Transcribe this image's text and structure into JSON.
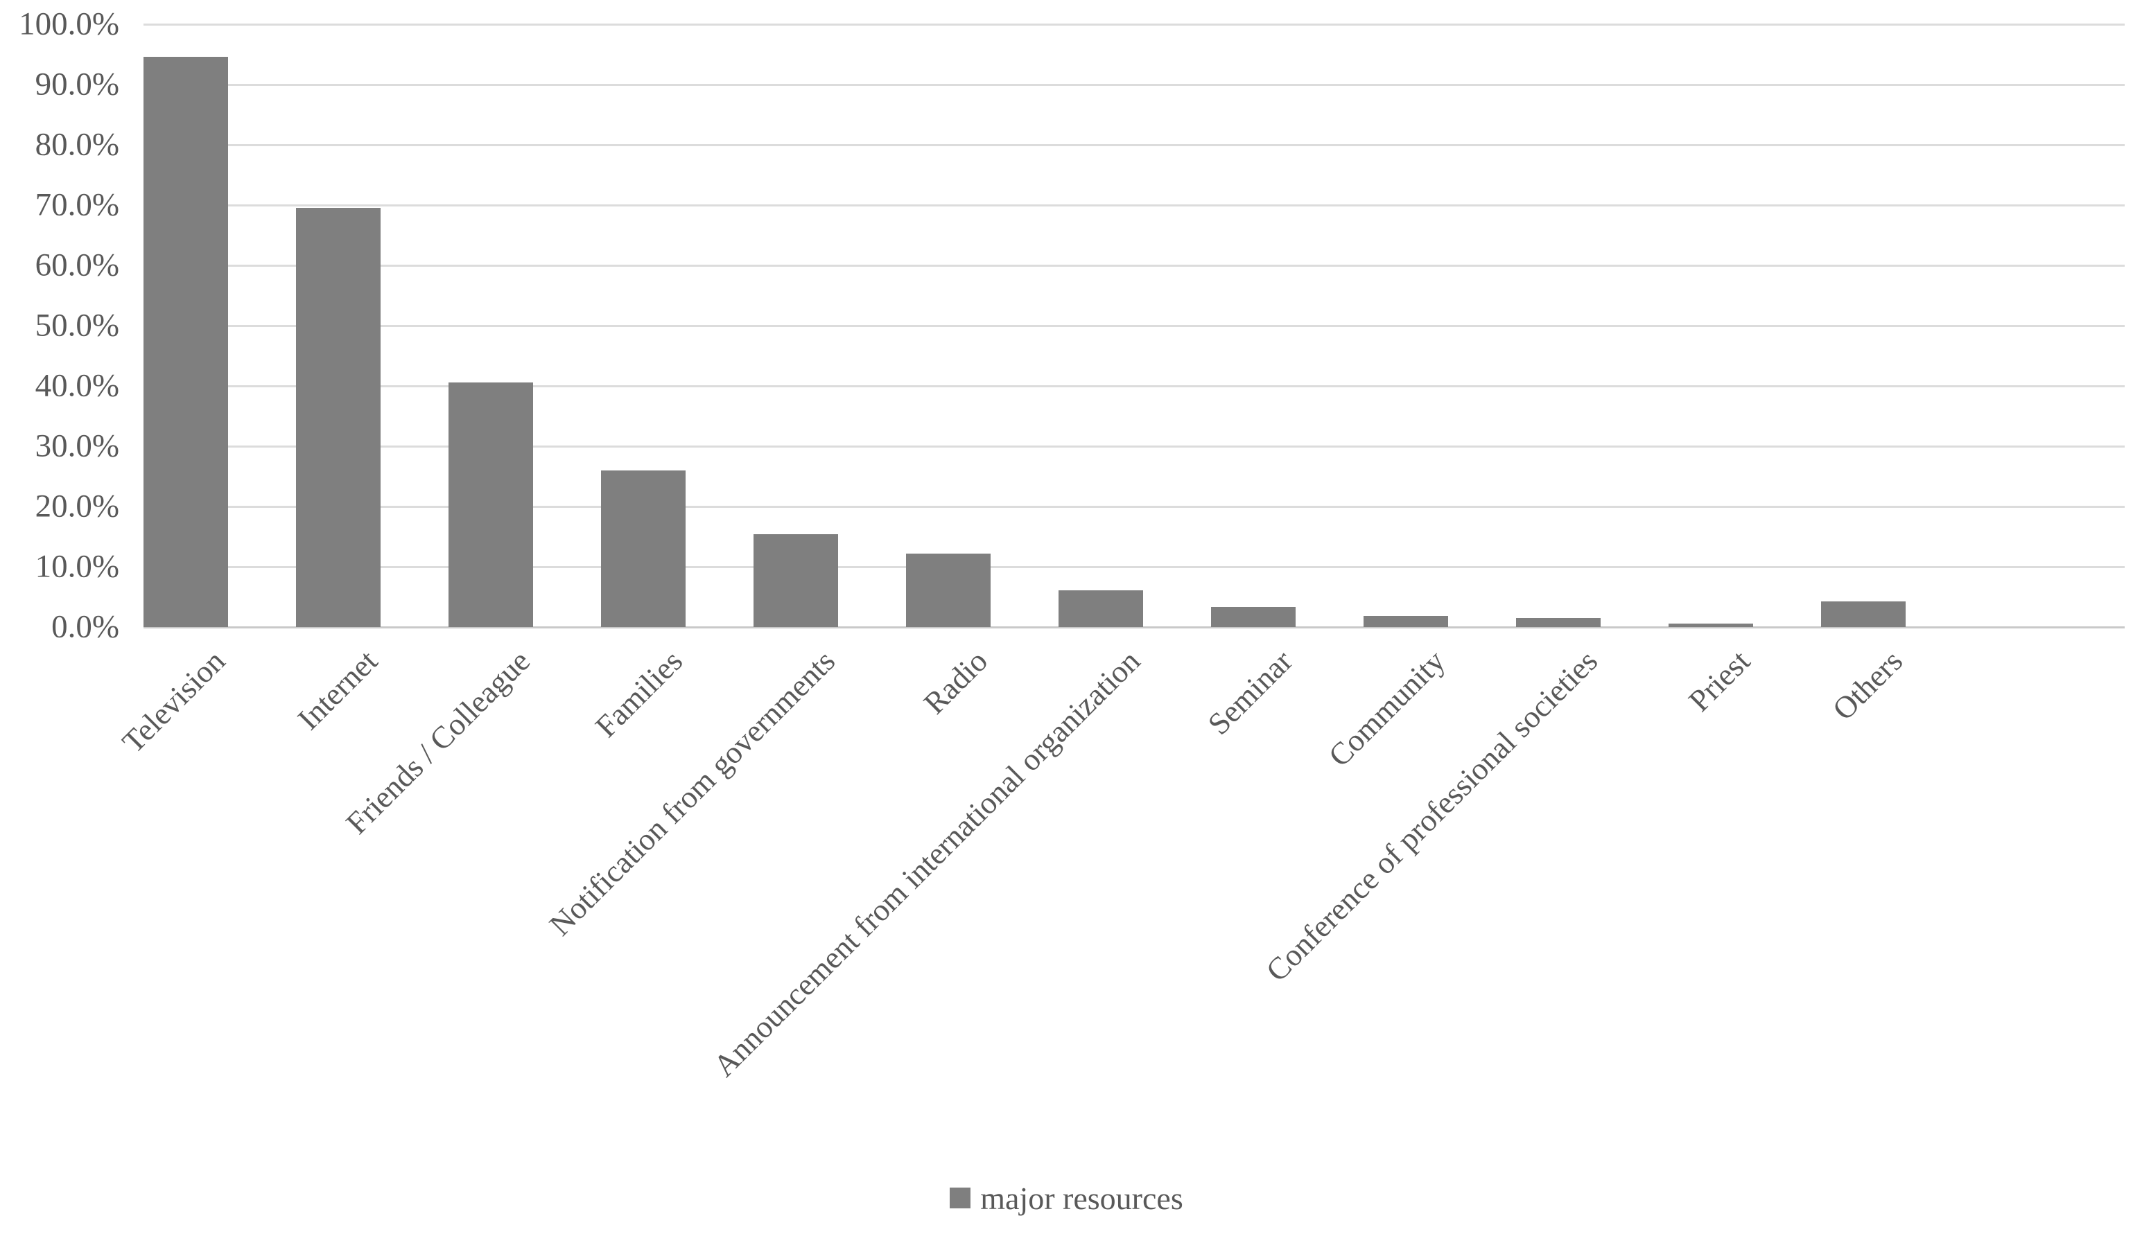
{
  "chart_data": {
    "type": "bar",
    "title": "",
    "xlabel": "",
    "ylabel": "",
    "categories": [
      "Television",
      "Internet",
      "Friends / Colleague",
      "Families",
      "Notification from governments",
      "Radio",
      "Announcement from international organization",
      "Seminar",
      "Community",
      "Conference of professional societies",
      "Priest",
      "Others"
    ],
    "series": [
      {
        "name": "major resources",
        "values": [
          94.6,
          69.5,
          40.6,
          26.0,
          15.4,
          12.2,
          6.1,
          3.3,
          1.8,
          1.5,
          0.6,
          4.2
        ]
      }
    ],
    "ylim": [
      0,
      100
    ],
    "y_ticks": [
      "0.0%",
      "10.0%",
      "20.0%",
      "30.0%",
      "40.0%",
      "50.0%",
      "60.0%",
      "70.0%",
      "80.0%",
      "90.0%",
      "100.0%"
    ],
    "grid": "horizontal",
    "legend_position": "bottom-center",
    "bar_color": "#7f7f7f",
    "gridline_color": "#dcdcdc",
    "axis_line_color": "#c9c9c9",
    "text_color": "#595959"
  },
  "legend": {
    "label": "major resources",
    "swatch_color": "#7f7f7f"
  }
}
